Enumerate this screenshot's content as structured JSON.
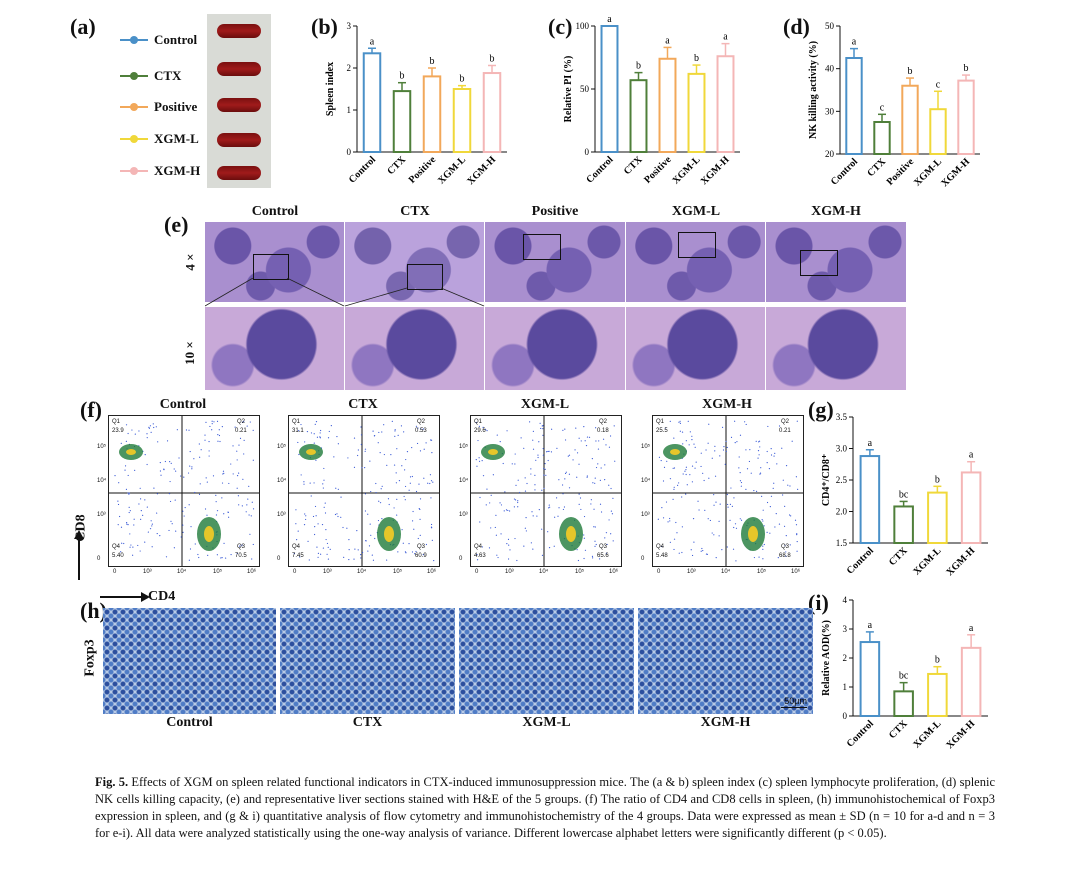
{
  "panels": {
    "a": "(a)",
    "b": "(b)",
    "c": "(c)",
    "d": "(d)",
    "e": "(e)",
    "f": "(f)",
    "g": "(g)",
    "h": "(h)",
    "i": "(i)"
  },
  "colors": {
    "Control": "#4a90c8",
    "CTX": "#4f7f3a",
    "Positive": "#f2a85a",
    "XGM-L": "#f0d83a",
    "XGM-H": "#f4b6b6"
  },
  "legend": [
    "Control",
    "CTX",
    "Positive",
    "XGM-L",
    "XGM-H"
  ],
  "chart_data": [
    {
      "id": "b",
      "type": "bar",
      "ylabel": "Spleen index",
      "categories": [
        "Control",
        "CTX",
        "Positive",
        "XGM-L",
        "XGM-H"
      ],
      "values": [
        2.35,
        1.45,
        1.8,
        1.5,
        1.88
      ],
      "errors": [
        0.12,
        0.2,
        0.2,
        0.08,
        0.18
      ],
      "letters": [
        "a",
        "b",
        "b",
        "b",
        "b"
      ],
      "ylim": [
        0,
        3
      ],
      "yticks": [
        0,
        1,
        2,
        3
      ]
    },
    {
      "id": "c",
      "type": "bar",
      "ylabel": "Relative PI (%)",
      "categories": [
        "Control",
        "CTX",
        "Positive",
        "XGM-L",
        "XGM-H"
      ],
      "values": [
        100,
        57,
        74,
        62,
        76
      ],
      "errors": [
        0,
        6,
        9,
        7,
        10
      ],
      "letters": [
        "a",
        "b",
        "a",
        "b",
        "a"
      ],
      "ylim": [
        0,
        100
      ],
      "yticks": [
        0,
        50,
        100
      ]
    },
    {
      "id": "d",
      "type": "bar",
      "ylabel": "NK killing activity (%)",
      "categories": [
        "Control",
        "CTX",
        "Positive",
        "XGM-L",
        "XGM-H"
      ],
      "values": [
        42.5,
        27.5,
        36,
        30.5,
        37.2
      ],
      "errors": [
        2.2,
        1.8,
        1.8,
        4.2,
        1.3
      ],
      "letters": [
        "a",
        "c",
        "b",
        "c",
        "b"
      ],
      "ylim": [
        20,
        50
      ],
      "yticks": [
        20,
        30,
        40,
        50
      ]
    },
    {
      "id": "g",
      "type": "bar",
      "ylabel": "CD4⁺/CD8⁺",
      "categories": [
        "Control",
        "CTX",
        "XGM-L",
        "XGM-H"
      ],
      "values": [
        2.88,
        2.08,
        2.3,
        2.62
      ],
      "errors": [
        0.1,
        0.08,
        0.1,
        0.17
      ],
      "letters": [
        "a",
        "bc",
        "b",
        "a"
      ],
      "ylim": [
        1.5,
        3.5
      ],
      "yticks": [
        1.5,
        2.0,
        2.5,
        3.0,
        3.5
      ],
      "ytick_labels": [
        "1.5",
        "2.0",
        "2.5",
        "3.0",
        "3.5"
      ]
    },
    {
      "id": "i",
      "type": "bar",
      "ylabel": "Relative AOD(%)",
      "categories": [
        "Control",
        "CTX",
        "XGM-L",
        "XGM-H"
      ],
      "values": [
        2.55,
        0.85,
        1.45,
        2.35
      ],
      "errors": [
        0.35,
        0.3,
        0.25,
        0.45
      ],
      "letters": [
        "a",
        "bc",
        "b",
        "a"
      ],
      "ylim": [
        0,
        4
      ],
      "yticks": [
        0,
        1,
        2,
        3,
        4
      ]
    }
  ],
  "he": {
    "groups": [
      "Control",
      "CTX",
      "Positive",
      "XGM-L",
      "XGM-H"
    ],
    "row_labels": [
      "4 ×",
      "10 ×"
    ]
  },
  "flow": {
    "groups": [
      "Control",
      "CTX",
      "XGM-L",
      "XGM-H"
    ],
    "q1": [
      "23.9",
      "31.1",
      "29.6",
      "25.5"
    ],
    "q2": [
      "0.21",
      "0.53",
      "0.18",
      "0.21"
    ],
    "q3": [
      "70.5",
      "60.9",
      "65.6",
      "68.8"
    ],
    "q4": [
      "5.40",
      "7.45",
      "4.63",
      "5.48"
    ],
    "qlabels": [
      "Q1",
      "Q2",
      "Q3",
      "Q4"
    ],
    "xaxis": "CD4",
    "yaxis": "CD8",
    "ticks": [
      "0",
      "10³",
      "10⁴",
      "10⁵",
      "10⁶"
    ]
  },
  "ihc": {
    "groups": [
      "Control",
      "CTX",
      "XGM-L",
      "XGM-H"
    ],
    "row_label": "Foxp3",
    "scale": "50μm"
  },
  "caption": {
    "fig": "Fig. 5.",
    "text": "Effects of XGM on spleen related functional indicators in CTX-induced immunosuppression mice. The (a & b) spleen index (c) spleen lymphocyte proliferation, (d) splenic NK cells killing capacity, (e) and representative liver sections stained with H&E of the 5 groups. (f) The ratio of CD4 and CD8 cells in spleen, (h) immunohistochemical of Foxp3 expression in spleen, and (g & i) quantitative analysis of flow cytometry and immunohistochemistry of the 4 groups. Data were expressed as mean ± SD (n = 10 for a-d and n = 3 for e-i). All data were analyzed statistically using the one-way analysis of variance. Different lowercase alphabet letters were significantly different (p < 0.05)."
  }
}
